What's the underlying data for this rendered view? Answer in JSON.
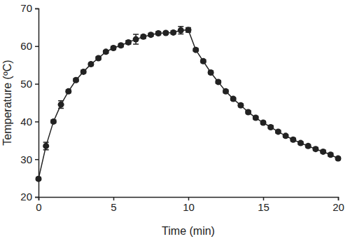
{
  "chart_data": {
    "type": "line",
    "x_label": "Time (min)",
    "y_label": "Temperature (ºC)",
    "x": [
      0,
      0.5,
      1,
      1.5,
      2,
      2.5,
      3,
      3.5,
      4,
      4.5,
      5,
      5.5,
      6,
      6.5,
      7,
      7.5,
      8,
      8.5,
      9,
      9.5,
      10,
      10.5,
      11,
      11.5,
      12,
      12.5,
      13,
      13.5,
      14,
      14.5,
      15,
      15.5,
      16,
      16.5,
      17,
      17.5,
      18,
      18.5,
      19,
      19.5,
      20
    ],
    "values": [
      24.8,
      33.5,
      40,
      44.5,
      48,
      51,
      53.2,
      55.2,
      56.8,
      58.5,
      59.5,
      60.2,
      61,
      61.8,
      62.5,
      63,
      63.4,
      63.5,
      63.6,
      64.2,
      64.3,
      59,
      56,
      53,
      50.5,
      48,
      46,
      44.3,
      42.5,
      41,
      39.7,
      38.5,
      37.3,
      36.2,
      35.2,
      34.3,
      33.5,
      32.7,
      32,
      31.2,
      30.2
    ],
    "errors": [
      0.4,
      1,
      0.4,
      1,
      0.4,
      0.4,
      0.4,
      0.4,
      0.4,
      0.4,
      0.4,
      0.4,
      0.5,
      1.3,
      0.5,
      0.4,
      0.4,
      0.4,
      0.4,
      1,
      0.6,
      0.4,
      0.4,
      0.4,
      0.4,
      0.4,
      0.4,
      0.4,
      0.4,
      0.4,
      0.4,
      0.4,
      0.4,
      0.4,
      0.4,
      0.4,
      0.4,
      0.4,
      0.4,
      0.4,
      0.4
    ],
    "color": "#222222",
    "marker": "circle",
    "line_style": "solid",
    "xlim": [
      0,
      20
    ],
    "xticks": [
      0,
      5,
      10,
      15,
      20
    ],
    "ylim": [
      20,
      70
    ],
    "yticks": [
      20,
      30,
      40,
      50,
      60,
      70
    ],
    "grid": false
  }
}
